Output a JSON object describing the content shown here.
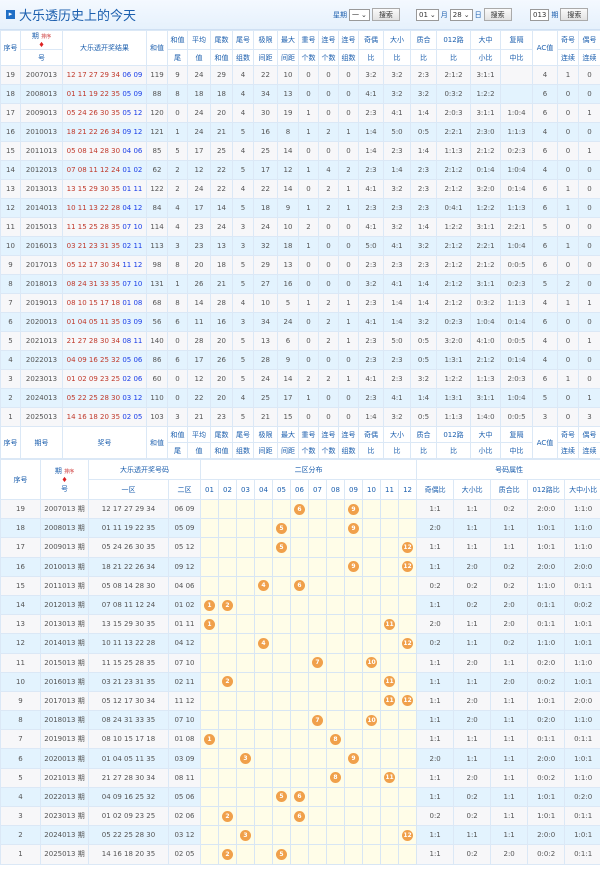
{
  "header": {
    "title": "大乐透历史上的今天",
    "week_label": "星期",
    "week_value": "一",
    "month_value": "01",
    "month_label": "月",
    "day_value": "28",
    "day_label": "日",
    "issue_value": "013",
    "issue_label": "期",
    "search": "搜索"
  },
  "colors": {
    "red": "#c0392b",
    "blue": "#1a3ee8",
    "ball": "#f0a04b",
    "accent": "#1c5fae"
  },
  "t1": {
    "head_top": [
      "序号",
      "期",
      "大乐透开奖结果",
      "和值",
      "和值",
      "平均",
      "尾数",
      "尾号",
      "极限",
      "最大",
      "重号",
      "连号",
      "连号",
      "奇偶",
      "大小",
      "质合",
      "012路",
      "大中",
      "复隔",
      "AC值",
      "奇号",
      "偶号"
    ],
    "head_bottom": [
      "号",
      "尾",
      "值",
      "和值",
      "组数",
      "间距",
      "间距",
      "个数",
      "个数",
      "组数",
      "比",
      "比",
      "比",
      "比",
      "小比",
      "中比",
      "连续",
      "连续"
    ],
    "sort_label": "排序",
    "foot_top": [
      "序号",
      "期号",
      "奖号",
      "和值",
      "和值",
      "平均",
      "尾数",
      "尾号",
      "极限",
      "最大",
      "重号",
      "连号",
      "连号",
      "奇偶",
      "大小",
      "质合",
      "012路",
      "大中",
      "复隔",
      "AC值",
      "奇号",
      "偶号"
    ],
    "rows": [
      [
        "19",
        "2007013",
        "12 17 27 29 34",
        "06 09",
        "119",
        "9",
        "24",
        "29",
        "4",
        "22",
        "10",
        "0",
        "0",
        "0",
        "3:2",
        "3:2",
        "2:3",
        "2:1:2",
        "3:1:1",
        "",
        "4",
        "1",
        "0"
      ],
      [
        "18",
        "2008013",
        "01 11 19 22 35",
        "05 09",
        "88",
        "8",
        "18",
        "18",
        "4",
        "34",
        "13",
        "0",
        "0",
        "0",
        "4:1",
        "3:2",
        "3:2",
        "0:3:2",
        "1:2:2",
        "",
        "6",
        "0",
        "0"
      ],
      [
        "17",
        "2009013",
        "05 24 26 30 35",
        "05 12",
        "120",
        "0",
        "24",
        "20",
        "4",
        "30",
        "19",
        "1",
        "0",
        "0",
        "2:3",
        "4:1",
        "1:4",
        "2:0:3",
        "3:1:1",
        "1:0:4",
        "6",
        "0",
        "1"
      ],
      [
        "16",
        "2010013",
        "18 21 22 26 34",
        "09 12",
        "121",
        "1",
        "24",
        "21",
        "5",
        "16",
        "8",
        "1",
        "2",
        "1",
        "1:4",
        "5:0",
        "0:5",
        "2:2:1",
        "2:3:0",
        "1:1:3",
        "4",
        "0",
        "0"
      ],
      [
        "15",
        "2011013",
        "05 08 14 28 30",
        "04 06",
        "85",
        "5",
        "17",
        "25",
        "4",
        "25",
        "14",
        "0",
        "0",
        "0",
        "1:4",
        "2:3",
        "1:4",
        "1:1:3",
        "2:1:2",
        "0:2:3",
        "6",
        "0",
        "1"
      ],
      [
        "14",
        "2012013",
        "07 08 11 12 24",
        "01 02",
        "62",
        "2",
        "12",
        "22",
        "5",
        "17",
        "12",
        "1",
        "4",
        "2",
        "2:3",
        "1:4",
        "2:3",
        "2:1:2",
        "0:1:4",
        "1:0:4",
        "4",
        "0",
        "0"
      ],
      [
        "13",
        "2013013",
        "13 15 29 30 35",
        "01 11",
        "122",
        "2",
        "24",
        "22",
        "4",
        "22",
        "14",
        "0",
        "2",
        "1",
        "4:1",
        "3:2",
        "2:3",
        "2:1:2",
        "3:2:0",
        "0:1:4",
        "6",
        "1",
        "0"
      ],
      [
        "12",
        "2014013",
        "10 11 13 22 28",
        "04 12",
        "84",
        "4",
        "17",
        "14",
        "5",
        "18",
        "9",
        "1",
        "2",
        "1",
        "2:3",
        "2:3",
        "2:3",
        "0:4:1",
        "1:2:2",
        "1:1:3",
        "6",
        "1",
        "0"
      ],
      [
        "11",
        "2015013",
        "11 15 25 28 35",
        "07 10",
        "114",
        "4",
        "23",
        "24",
        "3",
        "24",
        "10",
        "2",
        "0",
        "0",
        "4:1",
        "3:2",
        "1:4",
        "1:2:2",
        "3:1:1",
        "2:2:1",
        "5",
        "0",
        "0"
      ],
      [
        "10",
        "2016013",
        "03 21 23 31 35",
        "02 11",
        "113",
        "3",
        "23",
        "13",
        "3",
        "32",
        "18",
        "1",
        "0",
        "0",
        "5:0",
        "4:1",
        "3:2",
        "2:1:2",
        "2:2:1",
        "1:0:4",
        "6",
        "1",
        "0"
      ],
      [
        "9",
        "2017013",
        "05 12 17 30 34",
        "11 12",
        "98",
        "8",
        "20",
        "18",
        "5",
        "29",
        "13",
        "0",
        "0",
        "0",
        "2:3",
        "2:3",
        "2:3",
        "2:1:2",
        "2:1:2",
        "0:0:5",
        "6",
        "0",
        "0"
      ],
      [
        "8",
        "2018013",
        "08 24 31 33 35",
        "07 10",
        "131",
        "1",
        "26",
        "21",
        "5",
        "27",
        "16",
        "0",
        "0",
        "0",
        "3:2",
        "4:1",
        "1:4",
        "2:1:2",
        "3:1:1",
        "0:2:3",
        "5",
        "2",
        "0"
      ],
      [
        "7",
        "2019013",
        "08 10 15 17 18",
        "01 08",
        "68",
        "8",
        "14",
        "28",
        "4",
        "10",
        "5",
        "1",
        "2",
        "1",
        "2:3",
        "1:4",
        "1:4",
        "2:1:2",
        "0:3:2",
        "1:1:3",
        "4",
        "1",
        "1"
      ],
      [
        "6",
        "2020013",
        "01 04 05 11 35",
        "03 09",
        "56",
        "6",
        "11",
        "16",
        "3",
        "34",
        "24",
        "0",
        "2",
        "1",
        "4:1",
        "1:4",
        "3:2",
        "0:2:3",
        "1:0:4",
        "0:1:4",
        "6",
        "0",
        "0"
      ],
      [
        "5",
        "2021013",
        "21 27 28 30 34",
        "08 11",
        "140",
        "0",
        "28",
        "20",
        "5",
        "13",
        "6",
        "0",
        "2",
        "1",
        "2:3",
        "5:0",
        "0:5",
        "3:2:0",
        "4:1:0",
        "0:0:5",
        "4",
        "0",
        "1"
      ],
      [
        "4",
        "2022013",
        "04 09 16 25 32",
        "05 06",
        "86",
        "6",
        "17",
        "26",
        "5",
        "28",
        "9",
        "0",
        "0",
        "0",
        "2:3",
        "2:3",
        "0:5",
        "1:3:1",
        "2:1:2",
        "0:1:4",
        "4",
        "0",
        "0"
      ],
      [
        "3",
        "2023013",
        "01 02 09 23 25",
        "02 06",
        "60",
        "0",
        "12",
        "20",
        "5",
        "24",
        "14",
        "2",
        "2",
        "1",
        "4:1",
        "2:3",
        "3:2",
        "1:2:2",
        "1:1:3",
        "2:0:3",
        "6",
        "1",
        "0"
      ],
      [
        "2",
        "2024013",
        "05 22 25 28 30",
        "03 12",
        "110",
        "0",
        "22",
        "20",
        "4",
        "25",
        "17",
        "1",
        "0",
        "0",
        "2:3",
        "4:1",
        "1:4",
        "1:3:1",
        "3:1:1",
        "1:0:4",
        "5",
        "0",
        "1"
      ],
      [
        "1",
        "2025013",
        "14 16 18 20 35",
        "02 05",
        "103",
        "3",
        "21",
        "23",
        "5",
        "21",
        "15",
        "0",
        "0",
        "0",
        "1:4",
        "3:2",
        "0:5",
        "1:1:3",
        "1:4:0",
        "0:0:5",
        "3",
        "0",
        "3"
      ]
    ]
  },
  "t2": {
    "head": {
      "seq": "序号",
      "issue_top": "期",
      "issue_bottom": "号",
      "sort_label": "排序",
      "draw": "大乐透开奖号码",
      "zone1": "一区",
      "zone2": "二区",
      "dist": "二区分布",
      "attr": "号码属性",
      "nums": [
        "01",
        "02",
        "03",
        "04",
        "05",
        "06",
        "07",
        "08",
        "09",
        "10",
        "11",
        "12"
      ],
      "attrs": [
        "奇偶比",
        "大小比",
        "质合比",
        "012路比",
        "大中小比"
      ]
    },
    "issue_suffix": "期",
    "attrs": [
      [
        "1:1",
        "1:1",
        "0:2",
        "2:0:0",
        "1:1:0"
      ],
      [
        "2:0",
        "1:1",
        "1:1",
        "1:0:1",
        "1:1:0"
      ],
      [
        "1:1",
        "1:1",
        "1:1",
        "1:0:1",
        "1:1:0"
      ],
      [
        "1:1",
        "2:0",
        "0:2",
        "2:0:0",
        "2:0:0"
      ],
      [
        "0:2",
        "0:2",
        "0:2",
        "1:1:0",
        "0:1:1"
      ],
      [
        "1:1",
        "0:2",
        "2:0",
        "0:1:1",
        "0:0:2"
      ],
      [
        "2:0",
        "1:1",
        "2:0",
        "0:1:1",
        "1:0:1"
      ],
      [
        "0:2",
        "1:1",
        "0:2",
        "1:1:0",
        "1:0:1"
      ],
      [
        "1:1",
        "2:0",
        "1:1",
        "0:2:0",
        "1:1:0"
      ],
      [
        "1:1",
        "1:1",
        "2:0",
        "0:0:2",
        "1:0:1"
      ],
      [
        "1:1",
        "2:0",
        "1:1",
        "1:0:1",
        "2:0:0"
      ],
      [
        "1:1",
        "2:0",
        "1:1",
        "0:2:0",
        "1:1:0"
      ],
      [
        "1:1",
        "1:1",
        "1:1",
        "0:1:1",
        "0:1:1"
      ],
      [
        "2:0",
        "1:1",
        "1:1",
        "2:0:0",
        "1:0:1"
      ],
      [
        "1:1",
        "2:0",
        "1:1",
        "0:0:2",
        "1:1:0"
      ],
      [
        "1:1",
        "0:2",
        "1:1",
        "1:0:1",
        "0:2:0"
      ],
      [
        "0:2",
        "0:2",
        "1:1",
        "1:0:1",
        "0:1:1"
      ],
      [
        "1:1",
        "1:1",
        "1:1",
        "2:0:0",
        "1:0:1"
      ],
      [
        "1:1",
        "0:2",
        "2:0",
        "0:0:2",
        "0:1:1"
      ]
    ]
  }
}
